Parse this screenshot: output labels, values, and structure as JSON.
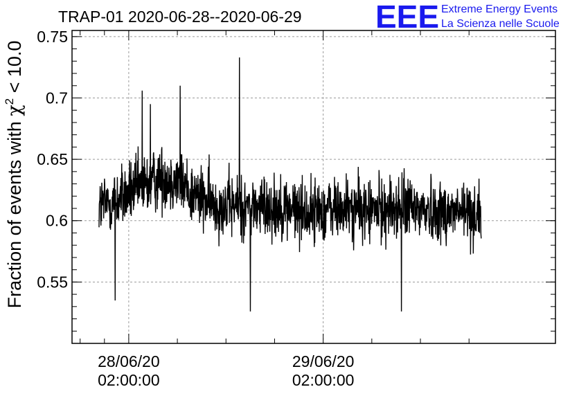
{
  "chart_data": {
    "type": "line",
    "title": "TRAP-01 2020-06-28--2020-06-29",
    "ylabel": "Fraction of events with",
    "ylabel_symbol": "χ",
    "ylabel_sup": "2",
    "ylabel_tail": " < 10.0",
    "xlabel": "",
    "x_start": "2020-06-27 22:20:00",
    "x_end": "2020-06-29 21:30:00",
    "xlim": [
      "2020-06-27 19:00:00",
      "2020-06-30 06:40:00"
    ],
    "ylim": [
      0.5,
      0.755
    ],
    "y_ticks": [
      0.55,
      0.6,
      0.65,
      0.7,
      0.75
    ],
    "y_tick_labels": [
      "0.55",
      "0.6",
      "0.65",
      "0.7",
      "0.75"
    ],
    "x_ticks": [
      {
        "time": "2020-06-28 02:00:00",
        "date": "28/06/20",
        "clock": "02:00:00"
      },
      {
        "time": "2020-06-29 02:00:00",
        "date": "29/06/20",
        "clock": "02:00:00"
      }
    ],
    "x_minor_ticks": [
      "2020-06-27 20:00:00",
      "2020-06-27 23:00:00",
      "2020-06-28 08:00:00",
      "2020-06-28 14:00:00",
      "2020-06-28 20:00:00",
      "2020-06-29 08:00:00",
      "2020-06-29 14:00:00",
      "2020-06-29 20:00:00"
    ],
    "grid": true,
    "line_color": "#000000",
    "grid_color": "#9a9a9a",
    "trend": [
      {
        "t": "2020-06-27 22:20:00",
        "y": 0.612
      },
      {
        "t": "2020-06-28 00:00:00",
        "y": 0.615
      },
      {
        "t": "2020-06-28 02:00:00",
        "y": 0.622
      },
      {
        "t": "2020-06-28 04:00:00",
        "y": 0.628
      },
      {
        "t": "2020-06-28 06:00:00",
        "y": 0.636
      },
      {
        "t": "2020-06-28 08:00:00",
        "y": 0.633
      },
      {
        "t": "2020-06-28 10:00:00",
        "y": 0.622
      },
      {
        "t": "2020-06-28 12:00:00",
        "y": 0.614
      },
      {
        "t": "2020-06-28 16:00:00",
        "y": 0.611
      },
      {
        "t": "2020-06-28 20:00:00",
        "y": 0.612
      },
      {
        "t": "2020-06-29 00:00:00",
        "y": 0.607
      },
      {
        "t": "2020-06-29 04:00:00",
        "y": 0.61
      },
      {
        "t": "2020-06-29 08:00:00",
        "y": 0.608
      },
      {
        "t": "2020-06-29 12:00:00",
        "y": 0.611
      },
      {
        "t": "2020-06-29 16:00:00",
        "y": 0.608
      },
      {
        "t": "2020-06-29 21:30:00",
        "y": 0.606
      }
    ],
    "noise_amplitude": 0.016,
    "spikes": [
      {
        "t": "2020-06-28 03:40:00",
        "y": 0.706
      },
      {
        "t": "2020-06-28 04:40:00",
        "y": 0.695
      },
      {
        "t": "2020-06-28 08:20:00",
        "y": 0.71
      },
      {
        "t": "2020-06-28 15:40:00",
        "y": 0.733
      },
      {
        "t": "2020-06-28 00:20:00",
        "y": 0.535
      },
      {
        "t": "2020-06-28 17:00:00",
        "y": 0.526
      },
      {
        "t": "2020-06-29 11:40:00",
        "y": 0.526
      }
    ]
  },
  "logo": {
    "letters": "EEE",
    "line1": "Extreme Energy Events",
    "line2": "La Scienza nelle Scuole",
    "color": "#1a1aee"
  }
}
